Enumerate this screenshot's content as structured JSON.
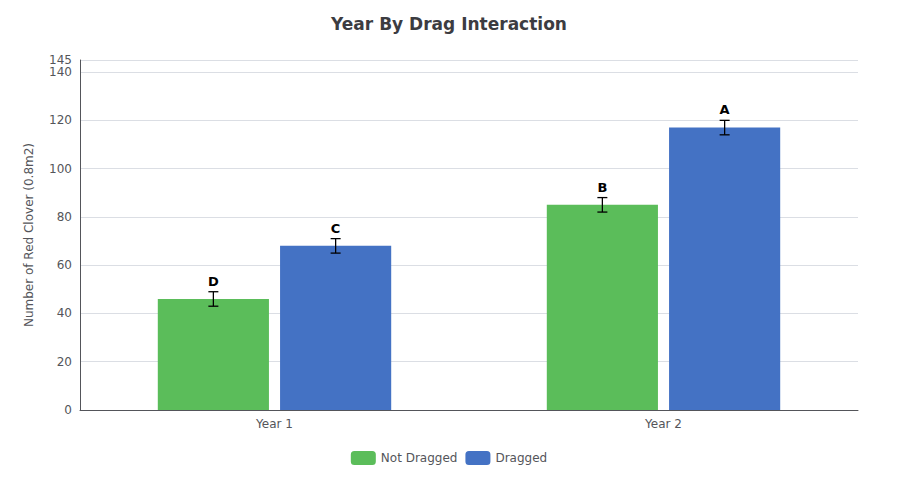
{
  "chart_data": {
    "type": "bar",
    "title": "Year By Drag Interaction",
    "ylabel": "Number of Red Clover (0.8m2)",
    "categories": [
      "Year 1",
      "Year 2"
    ],
    "series": [
      {
        "name": "Not Dragged",
        "color": "#5BBD5A",
        "values": [
          46,
          85
        ],
        "errors": [
          3,
          3
        ],
        "letters": [
          "D",
          "B"
        ]
      },
      {
        "name": "Dragged",
        "color": "#4472C4",
        "values": [
          68,
          117
        ],
        "errors": [
          3,
          3
        ],
        "letters": [
          "C",
          "A"
        ]
      }
    ],
    "ylim": [
      0,
      145
    ],
    "yticks": [
      0,
      20,
      40,
      60,
      80,
      100,
      120,
      140
    ],
    "grid": true,
    "legend": "bottom"
  }
}
